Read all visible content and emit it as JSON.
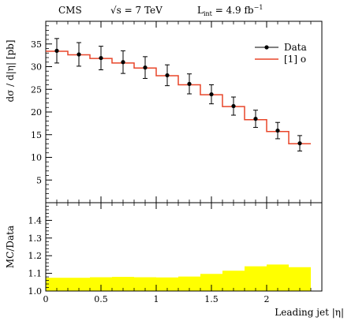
{
  "header": {
    "experiment": "CMS",
    "energy": "√s = 7 TeV",
    "lumi_prefix": "L",
    "lumi_sub": "int",
    "lumi_value": " = 4.9 fb",
    "lumi_sup": "−1"
  },
  "chart_data": [
    {
      "type": "line",
      "panel": "main",
      "ylabel": "dσ / d|η| [pb]",
      "xlabel": "",
      "xlim": [
        0,
        2.5
      ],
      "ylim": [
        0,
        40
      ],
      "xticks": [
        0,
        0.5,
        1,
        1.5,
        2
      ],
      "yticks": [
        5,
        10,
        15,
        20,
        25,
        30,
        35
      ],
      "bin_edges": [
        0,
        0.2,
        0.4,
        0.6,
        0.8,
        1.0,
        1.2,
        1.4,
        1.6,
        1.8,
        2.0,
        2.2,
        2.4
      ],
      "legend_position": "top-right",
      "series": [
        {
          "name": "Data",
          "style": "points-with-errors",
          "color": "#000000",
          "x": [
            0.1,
            0.3,
            0.5,
            0.7,
            0.9,
            1.1,
            1.3,
            1.5,
            1.7,
            1.9,
            2.1,
            2.3
          ],
          "y": [
            33.5,
            32.7,
            31.9,
            31.0,
            29.8,
            28.1,
            26.2,
            23.9,
            21.3,
            18.5,
            15.9,
            13.1
          ],
          "yerr": [
            2.7,
            2.6,
            2.6,
            2.5,
            2.4,
            2.3,
            2.2,
            2.1,
            2.0,
            1.9,
            1.8,
            1.7
          ]
        },
        {
          "name": "[1] o",
          "style": "step",
          "color": "#e8462a",
          "values": [
            33.4,
            32.6,
            31.8,
            30.8,
            29.7,
            28.0,
            26.0,
            23.8,
            21.2,
            18.3,
            15.7,
            13.0
          ]
        }
      ]
    },
    {
      "type": "area",
      "panel": "ratio",
      "ylabel": "MC/Data",
      "xlabel": "Leading jet |η|",
      "xlim": [
        0,
        2.5
      ],
      "ylim": [
        1.0,
        1.5
      ],
      "xticks": [
        0,
        0.5,
        1,
        1.5,
        2
      ],
      "xtick_labels": [
        "0",
        "0.5",
        "1",
        "1.5",
        "2"
      ],
      "yticks": [
        1.0,
        1.1,
        1.2,
        1.3,
        1.4
      ],
      "ytick_labels": [
        "1.0",
        "1.1",
        "1.2",
        "1.3",
        "1.4"
      ],
      "bin_edges": [
        0,
        0.2,
        0.4,
        0.6,
        0.8,
        1.0,
        1.2,
        1.4,
        1.6,
        1.8,
        2.0,
        2.2,
        2.4
      ],
      "band_color": "#ffff00",
      "values": [
        1.075,
        1.075,
        1.078,
        1.08,
        1.078,
        1.077,
        1.082,
        1.097,
        1.115,
        1.14,
        1.15,
        1.135
      ]
    }
  ]
}
